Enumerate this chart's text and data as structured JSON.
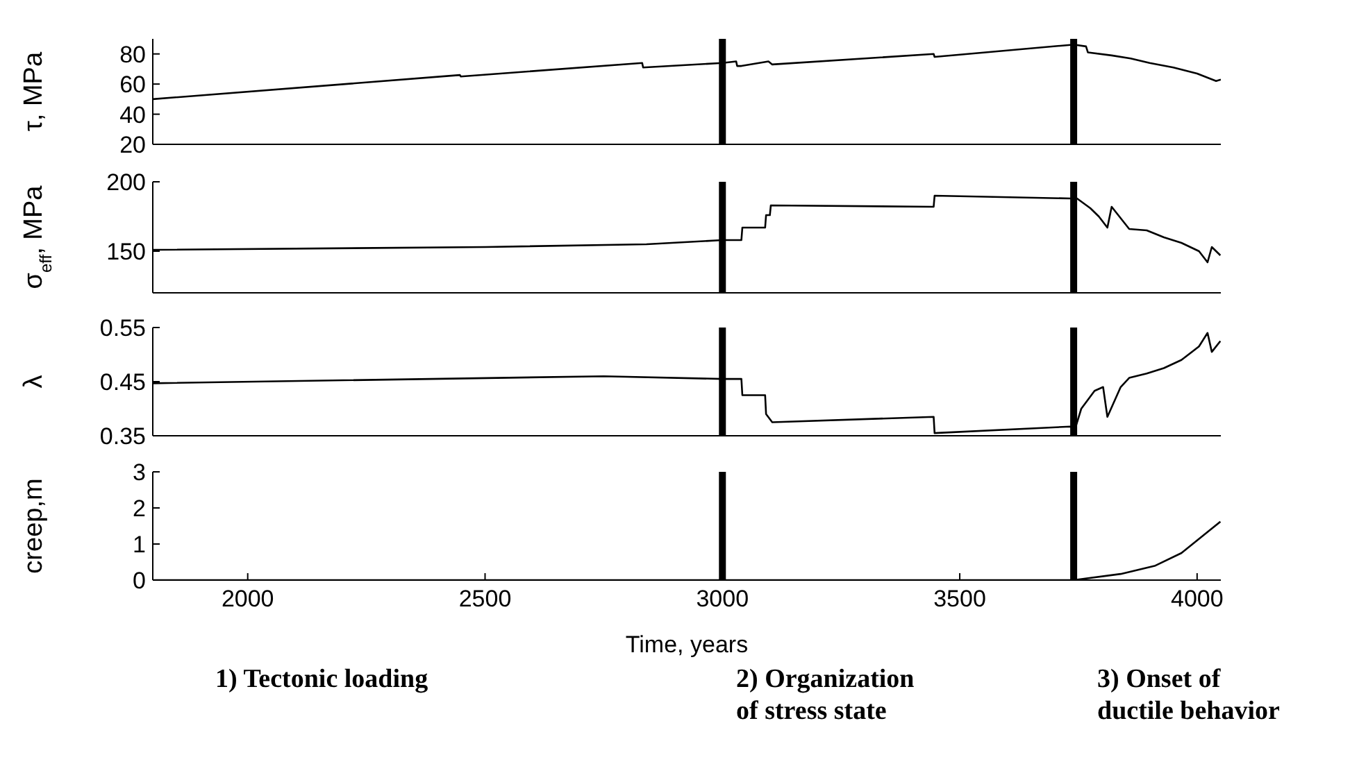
{
  "chart_data": [
    {
      "type": "line",
      "ylabel": "τ, MPa",
      "xlim": [
        1800,
        4050
      ],
      "xticks": [
        2000,
        2500,
        3000,
        3500,
        4000
      ],
      "ylim": [
        20,
        90
      ],
      "yticks": [
        20,
        40,
        60,
        80
      ],
      "tick_labels": "y",
      "grid": false,
      "legend": false,
      "marker": "none",
      "line_style": "solid",
      "series": [
        {
          "color": "#000000",
          "x": [
            1800,
            2447,
            2449,
            2831,
            2833,
            3000,
            3029,
            3031,
            3040,
            3097,
            3105,
            3445,
            3447,
            3733,
            3745,
            3766,
            3770,
            3820,
            3860,
            3900,
            3950,
            4000,
            4040,
            4050
          ],
          "values": [
            50,
            66,
            65,
            74,
            71,
            74,
            75,
            72,
            72,
            75,
            73,
            80,
            78,
            86,
            86,
            85,
            81,
            79,
            77,
            74,
            71,
            67,
            62,
            63
          ]
        }
      ],
      "ref_lines": [
        {
          "axis": "x",
          "value": 3000,
          "color": "#000000"
        },
        {
          "axis": "x",
          "value": 3740,
          "color": "#000000"
        }
      ]
    },
    {
      "type": "line",
      "ylabel": "σ$_{eff}$, MPa",
      "xlim": [
        1800,
        4050
      ],
      "xticks": [
        2000,
        2500,
        3000,
        3500,
        4000
      ],
      "ylim": [
        120,
        200
      ],
      "yticks": [
        150,
        200
      ],
      "tick_labels": "y",
      "grid": false,
      "legend": false,
      "marker": "none",
      "line_style": "solid",
      "series": [
        {
          "color": "#000000",
          "x": [
            1800,
            2500,
            2840,
            3000,
            3040,
            3042,
            3090,
            3092,
            3100,
            3102,
            3445,
            3447,
            3733,
            3747,
            3775,
            3793,
            3811,
            3820,
            3857,
            3894,
            3930,
            3967,
            4004,
            4022,
            4031,
            4049
          ],
          "values": [
            151,
            153,
            155,
            158,
            158,
            167,
            167,
            176,
            176,
            183,
            182,
            190,
            188,
            188,
            181,
            175,
            167,
            182,
            166,
            165,
            160,
            156,
            150,
            142,
            153,
            147
          ]
        }
      ],
      "ref_lines": [
        {
          "axis": "x",
          "value": 3000,
          "color": "#000000"
        },
        {
          "axis": "x",
          "value": 3740,
          "color": "#000000"
        }
      ]
    },
    {
      "type": "line",
      "ylabel": "λ",
      "xlim": [
        1800,
        4050
      ],
      "xticks": [
        2000,
        2500,
        3000,
        3500,
        4000
      ],
      "ylim": [
        0.35,
        0.55
      ],
      "yticks": [
        0.35,
        0.45,
        0.55
      ],
      "tick_labels": "y",
      "grid": false,
      "legend": false,
      "marker": "none",
      "line_style": "solid",
      "series": [
        {
          "color": "#000000",
          "x": [
            1800,
            2750,
            3000,
            3040,
            3042,
            3090,
            3092,
            3105,
            3445,
            3447,
            3733,
            3742,
            3756,
            3784,
            3802,
            3811,
            3839,
            3857,
            3894,
            3930,
            3967,
            4004,
            4022,
            4031,
            4049
          ],
          "values": [
            0.447,
            0.46,
            0.455,
            0.455,
            0.425,
            0.425,
            0.39,
            0.375,
            0.385,
            0.355,
            0.367,
            0.36,
            0.4,
            0.433,
            0.44,
            0.385,
            0.44,
            0.457,
            0.465,
            0.475,
            0.49,
            0.515,
            0.54,
            0.505,
            0.525
          ]
        }
      ],
      "ref_lines": [
        {
          "axis": "x",
          "value": 3000,
          "color": "#000000"
        },
        {
          "axis": "x",
          "value": 3740,
          "color": "#000000"
        }
      ]
    },
    {
      "type": "line",
      "ylabel": "creep,m",
      "xlabel": "Time, years",
      "xlim": [
        1800,
        4050
      ],
      "xticks": [
        2000,
        2500,
        3000,
        3500,
        4000
      ],
      "ylim": [
        0,
        3
      ],
      "yticks": [
        0,
        1,
        2,
        3
      ],
      "grid": false,
      "legend": false,
      "marker": "none",
      "line_style": "solid",
      "series": [
        {
          "color": "#000000",
          "x": [
            1800,
            3740,
            3839,
            3912,
            3967,
            4049
          ],
          "values": [
            0,
            0,
            0.17,
            0.4,
            0.75,
            1.62
          ]
        }
      ],
      "ref_lines": [
        {
          "axis": "x",
          "value": 3000,
          "color": "#000000"
        },
        {
          "axis": "x",
          "value": 3740,
          "color": "#000000"
        }
      ],
      "annotations": [
        "1) Tectonic loading",
        "2) Organization\nof stress state",
        "3) Onset of\nductile behavior"
      ]
    }
  ]
}
